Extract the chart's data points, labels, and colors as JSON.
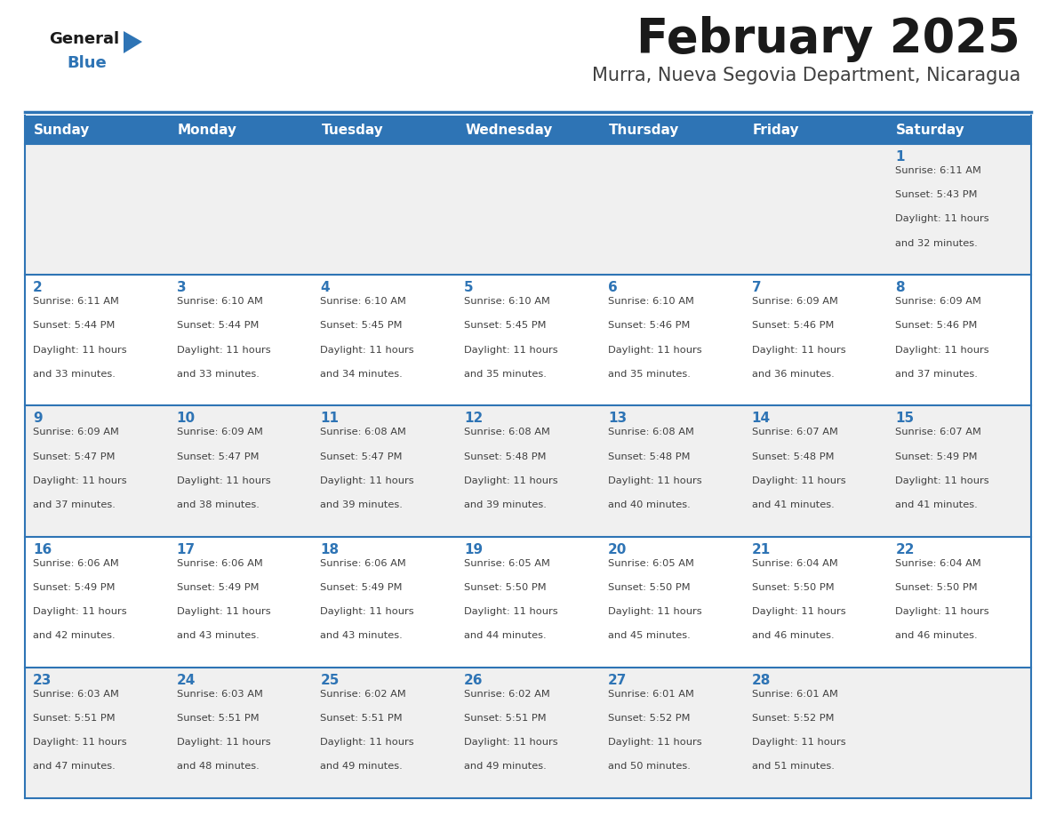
{
  "title": "February 2025",
  "subtitle": "Murra, Nueva Segovia Department, Nicaragua",
  "header_bg_color": "#2e74b5",
  "header_text_color": "#ffffff",
  "day_names": [
    "Sunday",
    "Monday",
    "Tuesday",
    "Wednesday",
    "Thursday",
    "Friday",
    "Saturday"
  ],
  "title_color": "#1a1a1a",
  "subtitle_color": "#404040",
  "cell_bg_white": "#ffffff",
  "cell_bg_gray": "#f0f0f0",
  "date_color": "#2e74b5",
  "text_color": "#404040",
  "border_color": "#2e74b5",
  "row_bg_colors": [
    "#f0f0f0",
    "#ffffff",
    "#f0f0f0",
    "#ffffff",
    "#f0f0f0"
  ],
  "days": [
    {
      "date": 1,
      "col": 6,
      "row": 0,
      "sunrise": "6:11 AM",
      "sunset": "5:43 PM",
      "daylight": "11 hours and 32 minutes."
    },
    {
      "date": 2,
      "col": 0,
      "row": 1,
      "sunrise": "6:11 AM",
      "sunset": "5:44 PM",
      "daylight": "11 hours and 33 minutes."
    },
    {
      "date": 3,
      "col": 1,
      "row": 1,
      "sunrise": "6:10 AM",
      "sunset": "5:44 PM",
      "daylight": "11 hours and 33 minutes."
    },
    {
      "date": 4,
      "col": 2,
      "row": 1,
      "sunrise": "6:10 AM",
      "sunset": "5:45 PM",
      "daylight": "11 hours and 34 minutes."
    },
    {
      "date": 5,
      "col": 3,
      "row": 1,
      "sunrise": "6:10 AM",
      "sunset": "5:45 PM",
      "daylight": "11 hours and 35 minutes."
    },
    {
      "date": 6,
      "col": 4,
      "row": 1,
      "sunrise": "6:10 AM",
      "sunset": "5:46 PM",
      "daylight": "11 hours and 35 minutes."
    },
    {
      "date": 7,
      "col": 5,
      "row": 1,
      "sunrise": "6:09 AM",
      "sunset": "5:46 PM",
      "daylight": "11 hours and 36 minutes."
    },
    {
      "date": 8,
      "col": 6,
      "row": 1,
      "sunrise": "6:09 AM",
      "sunset": "5:46 PM",
      "daylight": "11 hours and 37 minutes."
    },
    {
      "date": 9,
      "col": 0,
      "row": 2,
      "sunrise": "6:09 AM",
      "sunset": "5:47 PM",
      "daylight": "11 hours and 37 minutes."
    },
    {
      "date": 10,
      "col": 1,
      "row": 2,
      "sunrise": "6:09 AM",
      "sunset": "5:47 PM",
      "daylight": "11 hours and 38 minutes."
    },
    {
      "date": 11,
      "col": 2,
      "row": 2,
      "sunrise": "6:08 AM",
      "sunset": "5:47 PM",
      "daylight": "11 hours and 39 minutes."
    },
    {
      "date": 12,
      "col": 3,
      "row": 2,
      "sunrise": "6:08 AM",
      "sunset": "5:48 PM",
      "daylight": "11 hours and 39 minutes."
    },
    {
      "date": 13,
      "col": 4,
      "row": 2,
      "sunrise": "6:08 AM",
      "sunset": "5:48 PM",
      "daylight": "11 hours and 40 minutes."
    },
    {
      "date": 14,
      "col": 5,
      "row": 2,
      "sunrise": "6:07 AM",
      "sunset": "5:48 PM",
      "daylight": "11 hours and 41 minutes."
    },
    {
      "date": 15,
      "col": 6,
      "row": 2,
      "sunrise": "6:07 AM",
      "sunset": "5:49 PM",
      "daylight": "11 hours and 41 minutes."
    },
    {
      "date": 16,
      "col": 0,
      "row": 3,
      "sunrise": "6:06 AM",
      "sunset": "5:49 PM",
      "daylight": "11 hours and 42 minutes."
    },
    {
      "date": 17,
      "col": 1,
      "row": 3,
      "sunrise": "6:06 AM",
      "sunset": "5:49 PM",
      "daylight": "11 hours and 43 minutes."
    },
    {
      "date": 18,
      "col": 2,
      "row": 3,
      "sunrise": "6:06 AM",
      "sunset": "5:49 PM",
      "daylight": "11 hours and 43 minutes."
    },
    {
      "date": 19,
      "col": 3,
      "row": 3,
      "sunrise": "6:05 AM",
      "sunset": "5:50 PM",
      "daylight": "11 hours and 44 minutes."
    },
    {
      "date": 20,
      "col": 4,
      "row": 3,
      "sunrise": "6:05 AM",
      "sunset": "5:50 PM",
      "daylight": "11 hours and 45 minutes."
    },
    {
      "date": 21,
      "col": 5,
      "row": 3,
      "sunrise": "6:04 AM",
      "sunset": "5:50 PM",
      "daylight": "11 hours and 46 minutes."
    },
    {
      "date": 22,
      "col": 6,
      "row": 3,
      "sunrise": "6:04 AM",
      "sunset": "5:50 PM",
      "daylight": "11 hours and 46 minutes."
    },
    {
      "date": 23,
      "col": 0,
      "row": 4,
      "sunrise": "6:03 AM",
      "sunset": "5:51 PM",
      "daylight": "11 hours and 47 minutes."
    },
    {
      "date": 24,
      "col": 1,
      "row": 4,
      "sunrise": "6:03 AM",
      "sunset": "5:51 PM",
      "daylight": "11 hours and 48 minutes."
    },
    {
      "date": 25,
      "col": 2,
      "row": 4,
      "sunrise": "6:02 AM",
      "sunset": "5:51 PM",
      "daylight": "11 hours and 49 minutes."
    },
    {
      "date": 26,
      "col": 3,
      "row": 4,
      "sunrise": "6:02 AM",
      "sunset": "5:51 PM",
      "daylight": "11 hours and 49 minutes."
    },
    {
      "date": 27,
      "col": 4,
      "row": 4,
      "sunrise": "6:01 AM",
      "sunset": "5:52 PM",
      "daylight": "11 hours and 50 minutes."
    },
    {
      "date": 28,
      "col": 5,
      "row": 4,
      "sunrise": "6:01 AM",
      "sunset": "5:52 PM",
      "daylight": "11 hours and 51 minutes."
    }
  ]
}
